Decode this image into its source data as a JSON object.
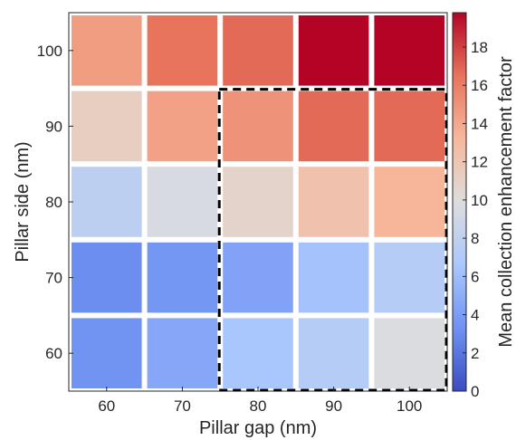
{
  "chart_data": {
    "type": "heatmap",
    "xlabel": "Pillar gap (nm)",
    "ylabel": "Pillar side (nm)",
    "x_categories": [
      "60",
      "70",
      "80",
      "90",
      "100"
    ],
    "y_categories": [
      "60",
      "70",
      "80",
      "90",
      "100"
    ],
    "values": [
      [
        14.5,
        16.5,
        16.8,
        19.8,
        19.8
      ],
      [
        11.3,
        14.3,
        15.0,
        16.8,
        16.8
      ],
      [
        7.8,
        9.5,
        10.8,
        12.3,
        13.3
      ],
      [
        3.1,
        3.6,
        4.3,
        6.3,
        7.3
      ],
      [
        3.4,
        4.6,
        6.6,
        7.3,
        9.7
      ]
    ],
    "values_row_order": "y categories top to bottom: 100, 90, 80, 70, 60",
    "colorbar": {
      "label": "Mean collection enhancement factor",
      "min": 0,
      "max": 19.8,
      "ticks": [
        "0",
        "2",
        "4",
        "6",
        "8",
        "10",
        "12",
        "14",
        "16",
        "18"
      ],
      "colormap": "coolwarm",
      "stops": [
        "#3b4cc0",
        "#6f92f3",
        "#aac7fd",
        "#dddddd",
        "#f7b89c",
        "#e7745b",
        "#b40426"
      ]
    },
    "highlight": {
      "style": "dashed",
      "x_range": [
        "80",
        "100"
      ],
      "y_range": [
        "60",
        "90"
      ]
    }
  }
}
